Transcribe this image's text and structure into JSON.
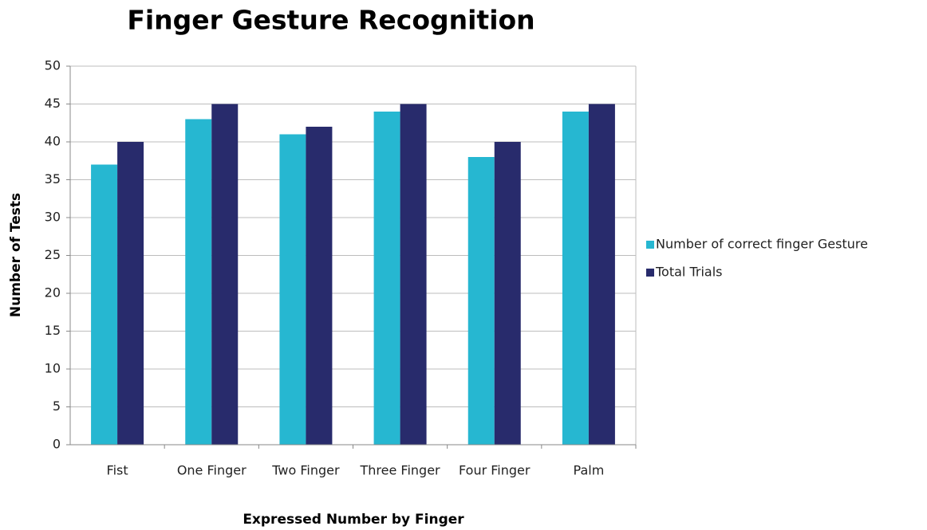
{
  "chart_data": {
    "type": "bar",
    "title": "Finger Gesture Recognition",
    "x_label": "Expressed Number by Finger",
    "y_label": "Number of Tests",
    "categories": [
      "Fist",
      "One Finger",
      "Two Finger",
      "Three Finger",
      "Four Finger",
      "Palm"
    ],
    "series": [
      {
        "name": "Number of correct finger Gesture",
        "color": "#26b7d1",
        "values": [
          37,
          43,
          41,
          44,
          38,
          44
        ]
      },
      {
        "name": "Total Trials",
        "color": "#282b6c",
        "values": [
          40,
          45,
          42,
          45,
          40,
          45
        ]
      }
    ],
    "ylim": [
      0,
      50
    ],
    "yticks": [
      0,
      5,
      10,
      15,
      20,
      25,
      30,
      35,
      40,
      45,
      50
    ],
    "grid": true,
    "legend": "right"
  }
}
